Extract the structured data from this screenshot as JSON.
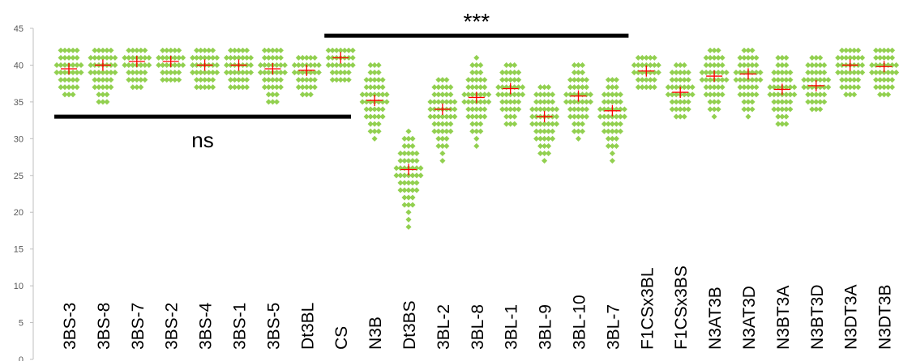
{
  "chart_data": {
    "type": "scatter",
    "ylim": [
      0,
      45
    ],
    "y_ticks": [
      "0",
      "5",
      "10",
      "15",
      "20",
      "25",
      "30",
      "35",
      "40",
      "45"
    ],
    "grid": false,
    "legend": "none",
    "colors": {
      "points": "#92d050",
      "mean": "#ff0000",
      "bars": "#000000",
      "axis": "#bfbfbf"
    },
    "categories": [
      "3BS-3",
      "3BS-8",
      "3BS-7",
      "3BS-2",
      "3BS-4",
      "3BS-1",
      "3BS-5",
      "Dt3BL",
      "CS",
      "N3B",
      "Dt3BS",
      "3BL-2",
      "3BL-8",
      "3BL-1",
      "3BL-9",
      "3BL-10",
      "3BL-7",
      "F1CSx3BL",
      "F1CSx3BS",
      "N3AT3B",
      "N3AT3D",
      "N3BT3A",
      "N3BT3D",
      "N3DT3A",
      "N3DT3B"
    ],
    "means": [
      39.5,
      40,
      40.5,
      40.5,
      40,
      40,
      39.5,
      39.3,
      41,
      35.2,
      25.8,
      34,
      35.6,
      36.8,
      33,
      35.8,
      33.8,
      39.2,
      36.3,
      38.5,
      38.8,
      36.7,
      37.2,
      40,
      39.8
    ],
    "ranges": [
      [
        36,
        42
      ],
      [
        35,
        42
      ],
      [
        37,
        42
      ],
      [
        38,
        42
      ],
      [
        37,
        42
      ],
      [
        37,
        42
      ],
      [
        35,
        42
      ],
      [
        36,
        41
      ],
      [
        38,
        42
      ],
      [
        30,
        40
      ],
      [
        18,
        31
      ],
      [
        27,
        38
      ],
      [
        29,
        41
      ],
      [
        32,
        40
      ],
      [
        27,
        37
      ],
      [
        30,
        40
      ],
      [
        27,
        38
      ],
      [
        37,
        41
      ],
      [
        33,
        40
      ],
      [
        33,
        42
      ],
      [
        33,
        42
      ],
      [
        32,
        41
      ],
      [
        34,
        41
      ],
      [
        36,
        42
      ],
      [
        36,
        42
      ]
    ],
    "annotations": [
      {
        "text": "ns",
        "y": 33,
        "from": 0,
        "to": 8,
        "label_pos": "below"
      },
      {
        "text": "***",
        "y": 44,
        "from": 8,
        "to": 16,
        "label_pos": "above"
      }
    ]
  }
}
